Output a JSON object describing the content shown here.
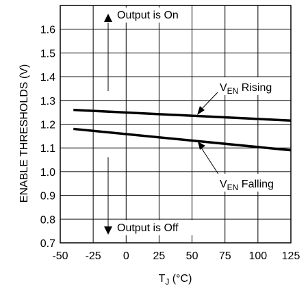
{
  "chart_data": {
    "type": "line",
    "xlabel": {
      "main": "T",
      "sub": "J",
      "rest": " (°C)"
    },
    "ylabel": "ENABLE THRESHOLDS (V)",
    "xlim": [
      -50,
      125
    ],
    "ylim": [
      0.7,
      1.7
    ],
    "xticks": [
      -50,
      -25,
      0,
      25,
      50,
      75,
      100,
      125
    ],
    "yticks": [
      0.7,
      0.8,
      0.9,
      1.0,
      1.1,
      1.2,
      1.3,
      1.4,
      1.5,
      1.6
    ],
    "xtick_labels": [
      "-50",
      "-25",
      "0",
      "25",
      "50",
      "75",
      "100",
      "125"
    ],
    "ytick_labels": [
      "0.7",
      "0.8",
      "0.9",
      "1.0",
      "1.1",
      "1.2",
      "1.3",
      "1.4",
      "1.5",
      "1.6"
    ],
    "grid": true,
    "series": [
      {
        "name": "V_EN Rising",
        "x": [
          -40,
          125
        ],
        "y": [
          1.26,
          1.215
        ]
      },
      {
        "name": "V_EN Falling",
        "x": [
          -40,
          125
        ],
        "y": [
          1.18,
          1.09
        ]
      }
    ],
    "annotations": {
      "output_on": "Output is On",
      "output_off": "Output is Off",
      "rising_label": {
        "main": "V",
        "sub": "EN",
        "rest": " Rising"
      },
      "falling_label": {
        "main": "V",
        "sub": "EN",
        "rest": " Falling"
      }
    }
  }
}
